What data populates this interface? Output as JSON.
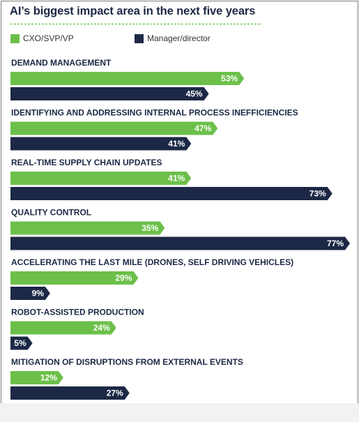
{
  "chart_data": {
    "type": "bar",
    "orientation": "horizontal",
    "title": "AI’s biggest impact area in the next five years",
    "categories": [
      "DEMAND MANAGEMENT",
      "IDENTIFYING AND ADDRESSING INTERNAL PROCESS INEFFICIENCIES",
      "REAL-TIME SUPPLY CHAIN UPDATES",
      "QUALITY CONTROL",
      "ACCELERATING THE LAST MILE (DRONES, SELF DRIVING VEHICLES)",
      "ROBOT-ASSISTED PRODUCTION",
      "MITIGATION OF DISRUPTIONS FROM EXTERNAL EVENTS"
    ],
    "series": [
      {
        "name": "CXO/SVP/VP",
        "color": "#6cc04a",
        "values": [
          53,
          47,
          41,
          35,
          29,
          24,
          12
        ]
      },
      {
        "name": "Manager/director",
        "color": "#1c2845",
        "values": [
          45,
          41,
          73,
          77,
          9,
          5,
          27
        ]
      }
    ],
    "value_suffix": "%",
    "xlim": [
      0,
      77
    ],
    "grid": false,
    "legend_position": "top-left"
  }
}
